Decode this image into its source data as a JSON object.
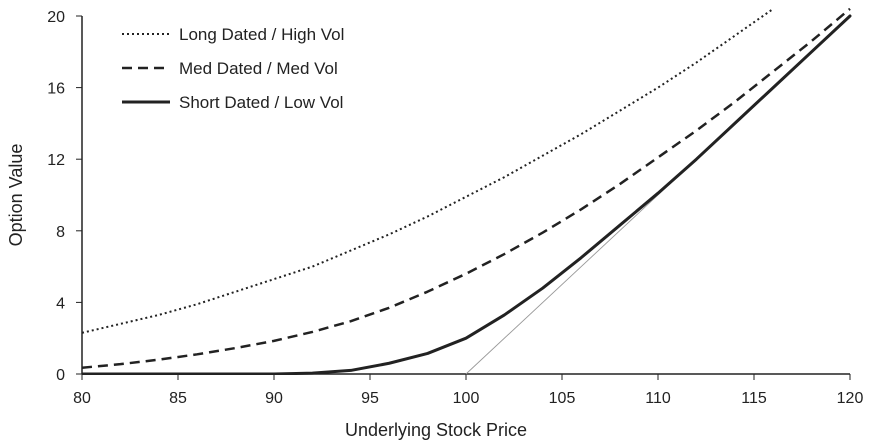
{
  "chart_data": {
    "type": "line",
    "title": "",
    "xlabel": "Underlying Stock Price",
    "ylabel": "Option Value",
    "xlim": [
      80,
      120
    ],
    "ylim": [
      0,
      20
    ],
    "xticks": [
      80,
      85,
      90,
      95,
      100,
      105,
      110,
      115,
      120
    ],
    "yticks": [
      0,
      4,
      8,
      12,
      16,
      20
    ],
    "grid": false,
    "legend_position": "top-left",
    "x": [
      80,
      82,
      84,
      86,
      88,
      90,
      92,
      94,
      96,
      98,
      100,
      102,
      104,
      106,
      108,
      110,
      112,
      114,
      116,
      118,
      120
    ],
    "series": [
      {
        "name": "Long Dated / High Vol",
        "style": "dotted",
        "color": "#222222",
        "values": [
          2.3,
          2.8,
          3.3,
          3.9,
          4.6,
          5.3,
          6.0,
          6.9,
          7.8,
          8.8,
          9.9,
          11.0,
          12.2,
          13.4,
          14.7,
          16.0,
          17.4,
          18.9,
          20.4,
          null,
          null
        ]
      },
      {
        "name": "Med Dated / Med Vol",
        "style": "dashed",
        "color": "#222222",
        "values": [
          0.35,
          0.55,
          0.8,
          1.1,
          1.45,
          1.85,
          2.35,
          2.95,
          3.7,
          4.6,
          5.6,
          6.7,
          7.9,
          9.2,
          10.6,
          12.1,
          13.6,
          15.2,
          16.9,
          18.6,
          20.4
        ]
      },
      {
        "name": "Short Dated / Low Vol",
        "style": "solid",
        "color": "#222222",
        "values": [
          0.0,
          0.0,
          0.0,
          0.0,
          0.0,
          0.0,
          0.05,
          0.2,
          0.6,
          1.15,
          2.0,
          3.3,
          4.8,
          6.5,
          8.3,
          10.1,
          12.0,
          14.0,
          16.0,
          18.0,
          20.0
        ]
      },
      {
        "name": "",
        "style": "thin",
        "color": "#999999",
        "x": [
          100,
          120
        ],
        "values": [
          0,
          20
        ]
      }
    ]
  }
}
